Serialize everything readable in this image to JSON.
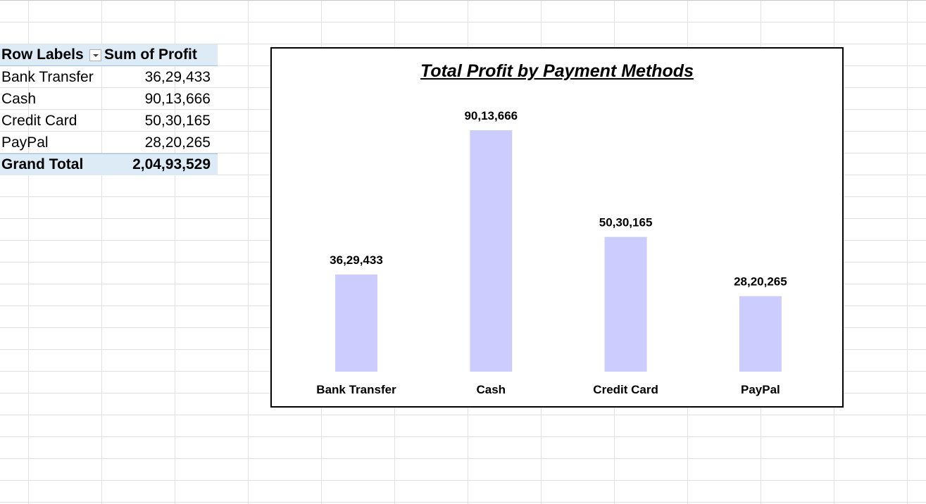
{
  "pivot": {
    "header": {
      "row_labels": "Row Labels",
      "sum_of_profit": "Sum of Profit"
    },
    "rows": [
      {
        "label": "Bank Transfer",
        "value": "36,29,433"
      },
      {
        "label": "Cash",
        "value": "90,13,666"
      },
      {
        "label": "Credit Card",
        "value": "50,30,165"
      },
      {
        "label": "PayPal",
        "value": "28,20,265"
      }
    ],
    "total": {
      "label": "Grand Total",
      "value": "2,04,93,529"
    }
  },
  "chart_data": {
    "type": "bar",
    "title": "Total Profit by Payment Methods",
    "categories": [
      "Bank Transfer",
      "Cash",
      "Credit Card",
      "PayPal"
    ],
    "values": [
      3629433,
      9013666,
      5030165,
      2820265
    ],
    "data_labels": [
      "36,29,433",
      "90,13,666",
      "50,30,165",
      "28,20,265"
    ],
    "xlabel": "",
    "ylabel": "",
    "ylim": [
      0,
      9013666
    ],
    "bar_color": "#ccccff",
    "grid": false,
    "legend": "none"
  }
}
